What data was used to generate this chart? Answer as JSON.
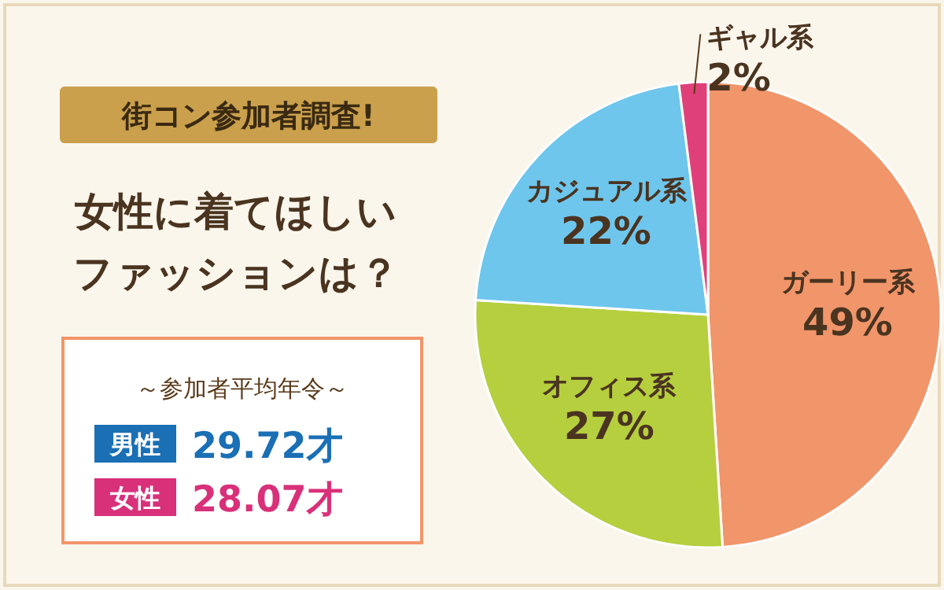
{
  "chart_data": {
    "type": "pie",
    "title": "街コン参加者調査!",
    "subtitle": "女性に着てほしいファッションは？",
    "categories": [
      "ガーリー系",
      "オフィス系",
      "カジュアル系",
      "ギャル系"
    ],
    "values": [
      49,
      27,
      22,
      2
    ],
    "colors": [
      "#f1956a",
      "#b6cf3e",
      "#6fc6ec",
      "#e0407a"
    ],
    "value_labels": [
      "49%",
      "27%",
      "22%",
      "2%"
    ],
    "annotations": [
      "～参加者平均年令～",
      "男性",
      "29.72才",
      "女性",
      "28.07才"
    ]
  }
}
